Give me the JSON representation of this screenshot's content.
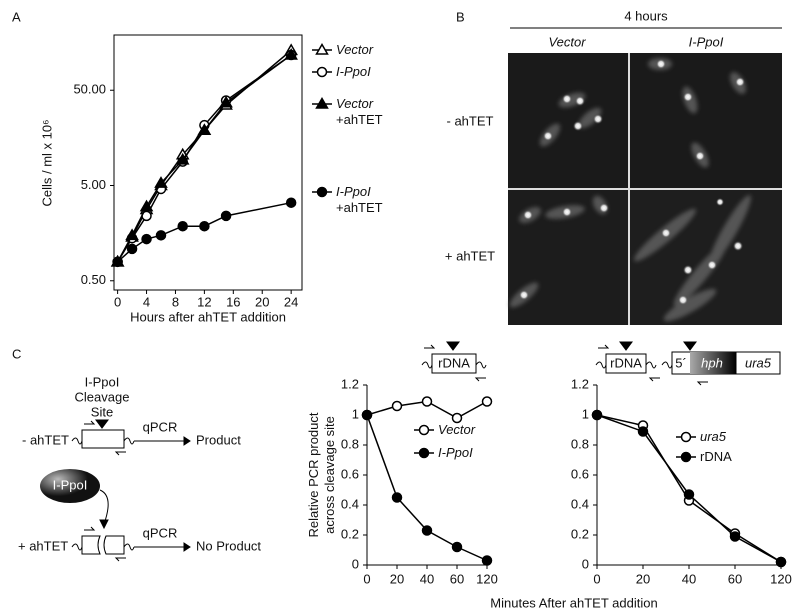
{
  "panel_labels": [
    "A",
    "B",
    "C"
  ],
  "micrographs": {
    "title": "4 hours",
    "columns": [
      "Vector",
      "I-PpoI"
    ],
    "rows": [
      "- ahTET",
      "+ ahTET"
    ]
  },
  "schematic": {
    "site_label": [
      "I-PpoI",
      "Cleavage",
      "Site"
    ],
    "conditions": [
      "- ahTET",
      "+ ahTET"
    ],
    "method": [
      "qPCR",
      "qPCR"
    ],
    "outcomes": [
      "Product",
      "No Product"
    ],
    "enzyme": "I-PpoI"
  },
  "constructs": {
    "rdna_locus": "rDNA",
    "reporter": [
      "rDNA",
      "5´",
      "hph",
      "ura5"
    ]
  },
  "chart_data": [
    {
      "type": "line",
      "ylabel": "Cells / ml x 10⁶",
      "xlabel": "Hours after ahTET addition",
      "x": [
        0,
        2,
        4,
        6,
        9,
        12,
        15,
        24
      ],
      "xlim": [
        -0.5,
        25.5
      ],
      "xticks": [
        0,
        4,
        8,
        12,
        16,
        20,
        24
      ],
      "ylim": [
        0.4,
        190
      ],
      "yscale": "log",
      "yticks": [
        {
          "value": 0.5,
          "label": "0.50"
        },
        {
          "value": 5,
          "label": "5.00"
        },
        {
          "value": 50,
          "label": "50.00"
        }
      ],
      "frame": true,
      "series": [
        {
          "name": "Vector",
          "color": "#000000",
          "marker": "open-triangle",
          "values": [
            0.79,
            1.44,
            2.8,
            5.0,
            10.5,
            19,
            35,
            131
          ]
        },
        {
          "name": "I-PpoI",
          "color": "#000000",
          "marker": "open-circle",
          "values": [
            0.79,
            1.4,
            2.4,
            4.6,
            8.9,
            21.5,
            39,
            117
          ]
        },
        {
          "name": "Vector +ahTET",
          "color": "#000000",
          "marker": "filled-triangle",
          "values": [
            0.79,
            1.5,
            3.0,
            5.3,
            9.3,
            19,
            37,
            117
          ]
        },
        {
          "name": "I-PpoI +ahTET",
          "color": "#000000",
          "marker": "filled-circle",
          "values": [
            0.79,
            1.08,
            1.37,
            1.5,
            1.87,
            1.87,
            2.4,
            3.3
          ]
        }
      ]
    },
    {
      "type": "line",
      "ylabel": "Relative PCR product across cleavage site",
      "xlabel": "Minutes After ahTET addition",
      "categories": [
        "0",
        "20",
        "40",
        "60",
        "120"
      ],
      "ylim": [
        0,
        1.2
      ],
      "yticks": [
        0,
        0.2,
        0.4,
        0.6,
        0.8,
        1,
        1.2
      ],
      "frame": false,
      "series": [
        {
          "name": "Vector",
          "color": "#000000",
          "marker": "open-circle",
          "italic": true,
          "values": [
            1.0,
            1.06,
            1.09,
            0.98,
            1.09
          ]
        },
        {
          "name": "I-PpoI",
          "color": "#000000",
          "marker": "filled-circle",
          "italic": true,
          "values": [
            1.0,
            0.45,
            0.23,
            0.12,
            0.03
          ]
        }
      ]
    },
    {
      "type": "line",
      "categories": [
        "0",
        "20",
        "40",
        "60",
        "120"
      ],
      "ylim": [
        0,
        1.2
      ],
      "yticks": [
        0,
        0.2,
        0.4,
        0.6,
        0.8,
        1,
        1.2
      ],
      "frame": false,
      "series": [
        {
          "name": "ura5",
          "color": "#000000",
          "marker": "open-circle",
          "italic": true,
          "values": [
            1.0,
            0.93,
            0.43,
            0.21,
            0.02
          ]
        },
        {
          "name": "rDNA",
          "color": "#000000",
          "marker": "filled-circle",
          "italic": false,
          "values": [
            1.0,
            0.89,
            0.47,
            0.19,
            0.02
          ]
        }
      ]
    }
  ]
}
